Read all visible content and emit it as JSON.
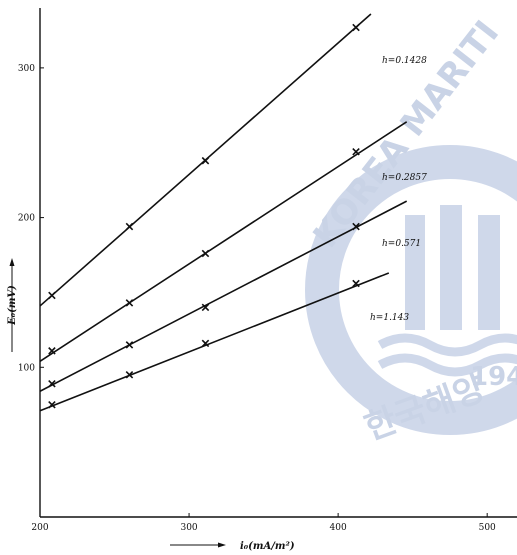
{
  "chart_data": {
    "type": "scatter",
    "xlabel": "i₀(mA/m²)",
    "ylabel": "E₀(mV)",
    "xlim": [
      200,
      520
    ],
    "ylim": [
      0,
      340
    ],
    "xticks": [
      200,
      300,
      400,
      500
    ],
    "yticks": [
      100,
      200,
      300
    ],
    "grid": false,
    "series": [
      {
        "name": "h=0.1428",
        "x": [
          208,
          260,
          311,
          412
        ],
        "y": [
          148,
          194,
          238,
          327
        ],
        "fit": [
          [
            200,
            141
          ],
          [
            422,
            336
          ]
        ]
      },
      {
        "name": "h=0.2857",
        "x": [
          208,
          260,
          311,
          412
        ],
        "y": [
          111,
          143,
          176,
          244
        ],
        "fit": [
          [
            200,
            104
          ],
          [
            446,
            264
          ]
        ]
      },
      {
        "name": "h=0.571",
        "x": [
          208,
          260,
          311,
          412
        ],
        "y": [
          89,
          115,
          140,
          194
        ],
        "fit": [
          [
            200,
            84
          ],
          [
            446,
            211
          ]
        ]
      },
      {
        "name": "h=1.143",
        "x": [
          208,
          260,
          311,
          412
        ],
        "y": [
          75,
          95,
          116,
          156
        ],
        "fit": [
          [
            200,
            71
          ],
          [
            434,
            163
          ]
        ]
      }
    ]
  },
  "watermark": {
    "arc_text": "KOREA MARITI",
    "year": "194",
    "korean": "한국해양",
    "color": "#c9d3e6"
  }
}
